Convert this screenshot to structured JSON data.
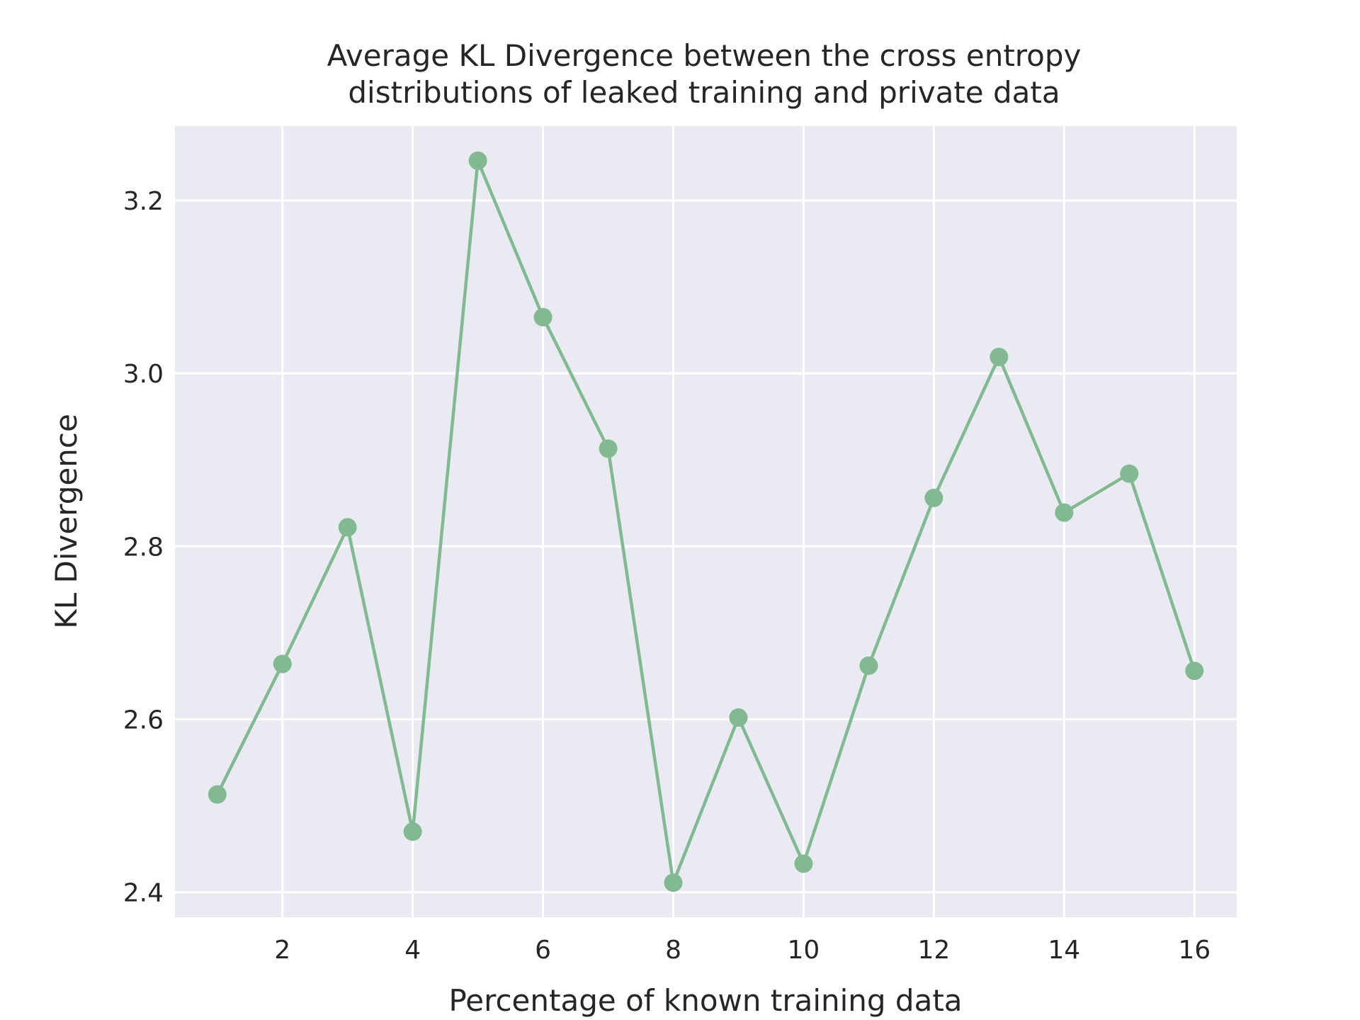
{
  "chart_data": {
    "type": "line",
    "title_lines": [
      "Average KL Divergence between the cross entropy",
      "distributions of leaked training and private data"
    ],
    "xlabel": "Percentage of known training data",
    "ylabel": "KL Divergence",
    "x": [
      1,
      2,
      3,
      4,
      5,
      6,
      7,
      8,
      9,
      10,
      11,
      12,
      13,
      14,
      15,
      16
    ],
    "series": [
      {
        "values": [
          2.513,
          2.664,
          2.822,
          2.47,
          3.246,
          3.065,
          2.913,
          2.411,
          2.602,
          2.433,
          2.662,
          2.856,
          3.019,
          2.839,
          2.884,
          2.656
        ],
        "color": "#82b992"
      }
    ],
    "xlim": [
      0.35,
      16.65
    ],
    "ylim": [
      2.371,
      3.286
    ],
    "xticks": [
      2,
      4,
      6,
      8,
      10,
      12,
      14,
      16
    ],
    "yticks": [
      2.4,
      2.6,
      2.8,
      3.0,
      3.2
    ],
    "ytick_labels": [
      "2.4",
      "2.6",
      "2.8",
      "3.0",
      "3.2"
    ],
    "grid": true,
    "style": {
      "plot_background": "#eaeaf2",
      "grid_color": "#ffffff",
      "text_color": "#262626",
      "page_background": "#ffffff"
    }
  }
}
